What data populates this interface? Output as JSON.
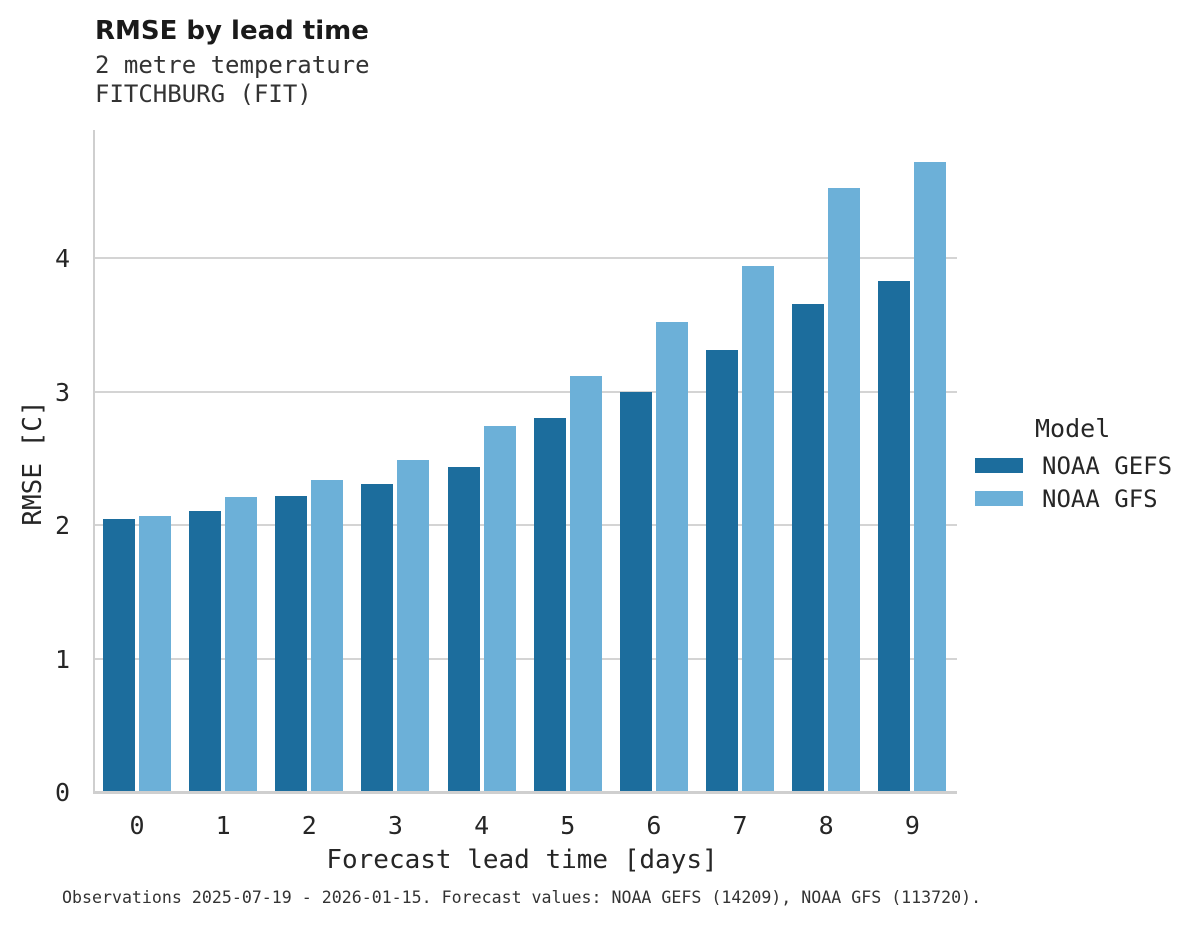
{
  "chart_data": {
    "type": "bar",
    "title": "RMSE by lead time",
    "subtitle": [
      "2 metre temperature",
      "FITCHBURG (FIT)"
    ],
    "categories": [
      "0",
      "1",
      "2",
      "3",
      "4",
      "5",
      "6",
      "7",
      "8",
      "9"
    ],
    "series": [
      {
        "name": "NOAA GEFS",
        "color": "#1c6d9d",
        "values": [
          2.05,
          2.11,
          2.22,
          2.31,
          2.44,
          2.8,
          3.0,
          3.31,
          3.66,
          3.83
        ]
      },
      {
        "name": "NOAA GFS",
        "color": "#6cb0d8",
        "values": [
          2.07,
          2.21,
          2.34,
          2.49,
          2.74,
          3.12,
          3.52,
          3.94,
          4.53,
          4.72
        ]
      }
    ],
    "xlabel": "Forecast lead time [days]",
    "ylabel": "RMSE [C]",
    "ylim": [
      0,
      4.96
    ],
    "yticks": [
      "0",
      "1",
      "2",
      "3",
      "4"
    ],
    "grid": "horizontal",
    "legend_title": "Model",
    "legend_position": "right"
  },
  "colors": {
    "gefs": "#1c6d9d",
    "gfs": "#6cb0d8",
    "gridline": "#d4d4d4",
    "axis": "#cfcfcf",
    "text": "#262626"
  },
  "footer": {
    "note": "Observations 2025-07-19 - 2026-01-15. Forecast values: NOAA GEFS (14209), NOAA GFS (113720)."
  }
}
